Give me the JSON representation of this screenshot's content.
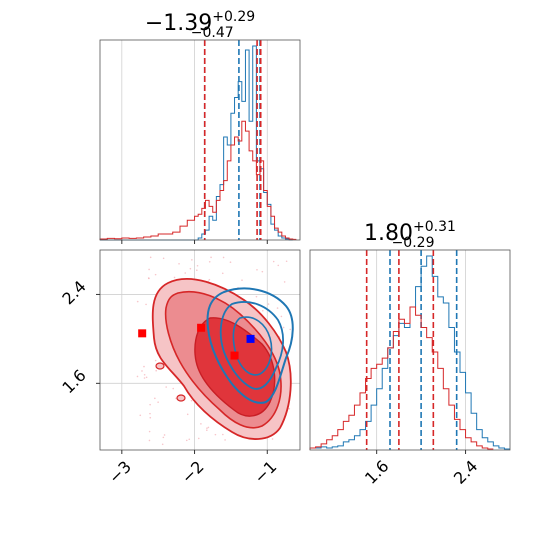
{
  "chart_data": {
    "type": "corner",
    "panels": [
      {
        "id": "x-marginal",
        "type": "histogram",
        "title": {
          "median": "−1.39",
          "plus": "+0.29",
          "minus": "−0.47"
        },
        "xlim": [
          -3.3,
          -0.55
        ],
        "series": [
          {
            "color": "#1f77b4",
            "quantiles": [
              -1.86,
              -1.39,
              -1.1
            ],
            "bins": [
              [
                -3.3,
                0
              ],
              [
                -3.2,
                0
              ],
              [
                -3.1,
                0
              ],
              [
                -3.0,
                0
              ],
              [
                -2.9,
                0
              ],
              [
                -2.8,
                0
              ],
              [
                -2.7,
                0
              ],
              [
                -2.6,
                0
              ],
              [
                -2.5,
                0
              ],
              [
                -2.4,
                0
              ],
              [
                -2.3,
                0
              ],
              [
                -2.2,
                0
              ],
              [
                -2.1,
                0
              ],
              [
                -2.0,
                0
              ],
              [
                -1.95,
                0.01
              ],
              [
                -1.9,
                0.03
              ],
              [
                -1.85,
                0.05
              ],
              [
                -1.8,
                0.12
              ],
              [
                -1.75,
                0.1
              ],
              [
                -1.7,
                0.22
              ],
              [
                -1.65,
                0.28
              ],
              [
                -1.6,
                0.52
              ],
              [
                -1.55,
                0.48
              ],
              [
                -1.5,
                0.64
              ],
              [
                -1.45,
                0.72
              ],
              [
                -1.4,
                0.8
              ],
              [
                -1.35,
                0.7
              ],
              [
                -1.3,
                0.96
              ],
              [
                -1.25,
                0.6
              ],
              [
                -1.2,
                0.98
              ],
              [
                -1.15,
                0.4
              ],
              [
                -1.1,
                0.36
              ],
              [
                -1.05,
                0.24
              ],
              [
                -1.0,
                0.18
              ],
              [
                -0.95,
                0.08
              ],
              [
                -0.9,
                0.05
              ],
              [
                -0.85,
                0.02
              ],
              [
                -0.8,
                0.01
              ],
              [
                -0.75,
                0.005
              ],
              [
                -0.7,
                0
              ]
            ]
          },
          {
            "color": "#d62728",
            "quantiles": [
              -1.86,
              -1.14,
              -1.09
            ],
            "bins": [
              [
                -3.3,
                0.005
              ],
              [
                -3.2,
                0.008
              ],
              [
                -3.1,
                0.006
              ],
              [
                -3.0,
                0.01
              ],
              [
                -2.9,
                0.008
              ],
              [
                -2.8,
                0.01
              ],
              [
                -2.7,
                0.015
              ],
              [
                -2.6,
                0.02
              ],
              [
                -2.5,
                0.03
              ],
              [
                -2.4,
                0.03
              ],
              [
                -2.3,
                0.04
              ],
              [
                -2.2,
                0.07
              ],
              [
                -2.1,
                0.1
              ],
              [
                -2.0,
                0.12
              ],
              [
                -1.95,
                0.13
              ],
              [
                -1.9,
                0.16
              ],
              [
                -1.85,
                0.2
              ],
              [
                -1.8,
                0.17
              ],
              [
                -1.75,
                0.14
              ],
              [
                -1.7,
                0.2
              ],
              [
                -1.65,
                0.25
              ],
              [
                -1.6,
                0.3
              ],
              [
                -1.55,
                0.4
              ],
              [
                -1.5,
                0.48
              ],
              [
                -1.45,
                0.52
              ],
              [
                -1.4,
                0.5
              ],
              [
                -1.35,
                0.6
              ],
              [
                -1.3,
                0.55
              ],
              [
                -1.25,
                0.45
              ],
              [
                -1.2,
                0.4
              ],
              [
                -1.15,
                0.33
              ],
              [
                -1.1,
                0.4
              ],
              [
                -1.05,
                0.25
              ],
              [
                -1.0,
                0.17
              ],
              [
                -0.95,
                0.12
              ],
              [
                -0.9,
                0.06
              ],
              [
                -0.85,
                0.04
              ],
              [
                -0.8,
                0.02
              ],
              [
                -0.75,
                0.01
              ],
              [
                -0.7,
                0.005
              ],
              [
                -0.65,
                0.003
              ]
            ]
          }
        ]
      },
      {
        "id": "y-marginal",
        "type": "histogram",
        "title": {
          "median": "1.80",
          "plus": "+0.31",
          "minus": "−0.29"
        },
        "xlim": [
          1.0,
          2.8
        ],
        "xticks": [
          "1.6",
          "2.4"
        ],
        "series": [
          {
            "color": "#1f77b4",
            "quantiles": [
              1.72,
              2.0,
              2.32
            ],
            "bins": [
              [
                1.0,
                0.01
              ],
              [
                1.05,
                0.01
              ],
              [
                1.1,
                0.015
              ],
              [
                1.15,
                0.01
              ],
              [
                1.2,
                0.015
              ],
              [
                1.25,
                0.02
              ],
              [
                1.3,
                0.04
              ],
              [
                1.35,
                0.05
              ],
              [
                1.4,
                0.07
              ],
              [
                1.45,
                0.1
              ],
              [
                1.5,
                0.14
              ],
              [
                1.55,
                0.22
              ],
              [
                1.6,
                0.3
              ],
              [
                1.65,
                0.4
              ],
              [
                1.7,
                0.5
              ],
              [
                1.75,
                0.56
              ],
              [
                1.8,
                0.62
              ],
              [
                1.85,
                0.6
              ],
              [
                1.9,
                0.7
              ],
              [
                1.95,
                0.8
              ],
              [
                2.0,
                0.9
              ],
              [
                2.05,
                0.95
              ],
              [
                2.1,
                0.85
              ],
              [
                2.15,
                0.75
              ],
              [
                2.2,
                0.72
              ],
              [
                2.25,
                0.6
              ],
              [
                2.3,
                0.48
              ],
              [
                2.35,
                0.38
              ],
              [
                2.4,
                0.28
              ],
              [
                2.45,
                0.18
              ],
              [
                2.5,
                0.1
              ],
              [
                2.55,
                0.06
              ],
              [
                2.6,
                0.04
              ],
              [
                2.65,
                0.02
              ],
              [
                2.7,
                0.01
              ],
              [
                2.75,
                0.005
              ]
            ]
          },
          {
            "color": "#d62728",
            "quantiles": [
              1.51,
              1.8,
              2.11
            ],
            "bins": [
              [
                1.0,
                0.01
              ],
              [
                1.05,
                0.015
              ],
              [
                1.1,
                0.03
              ],
              [
                1.15,
                0.05
              ],
              [
                1.2,
                0.07
              ],
              [
                1.25,
                0.1
              ],
              [
                1.3,
                0.14
              ],
              [
                1.35,
                0.17
              ],
              [
                1.4,
                0.22
              ],
              [
                1.45,
                0.28
              ],
              [
                1.5,
                0.35
              ],
              [
                1.55,
                0.4
              ],
              [
                1.6,
                0.42
              ],
              [
                1.65,
                0.45
              ],
              [
                1.7,
                0.5
              ],
              [
                1.75,
                0.58
              ],
              [
                1.8,
                0.64
              ],
              [
                1.85,
                0.62
              ],
              [
                1.9,
                0.7
              ],
              [
                1.95,
                0.66
              ],
              [
                2.0,
                0.6
              ],
              [
                2.05,
                0.55
              ],
              [
                2.1,
                0.48
              ],
              [
                2.15,
                0.4
              ],
              [
                2.2,
                0.3
              ],
              [
                2.25,
                0.22
              ],
              [
                2.3,
                0.15
              ],
              [
                2.35,
                0.1
              ],
              [
                2.4,
                0.06
              ],
              [
                2.45,
                0.04
              ],
              [
                2.5,
                0.02
              ],
              [
                2.55,
                0.01
              ],
              [
                2.6,
                0.005
              ]
            ]
          }
        ]
      },
      {
        "id": "joint",
        "type": "contour",
        "xlim": [
          -3.3,
          -0.55
        ],
        "ylim": [
          1.0,
          2.8
        ],
        "xticks": [
          "−3",
          "−2",
          "−1"
        ],
        "yticks": [
          "2.4",
          "1.6"
        ],
        "markers": [
          {
            "color": "#ff0000",
            "x": -2.72,
            "y": 2.05
          },
          {
            "color": "#ff0000",
            "x": -1.91,
            "y": 2.1
          },
          {
            "color": "#ff0000",
            "x": -1.45,
            "y": 1.85
          },
          {
            "color": "#0000ff",
            "x": -1.23,
            "y": 2.0
          }
        ]
      }
    ]
  }
}
